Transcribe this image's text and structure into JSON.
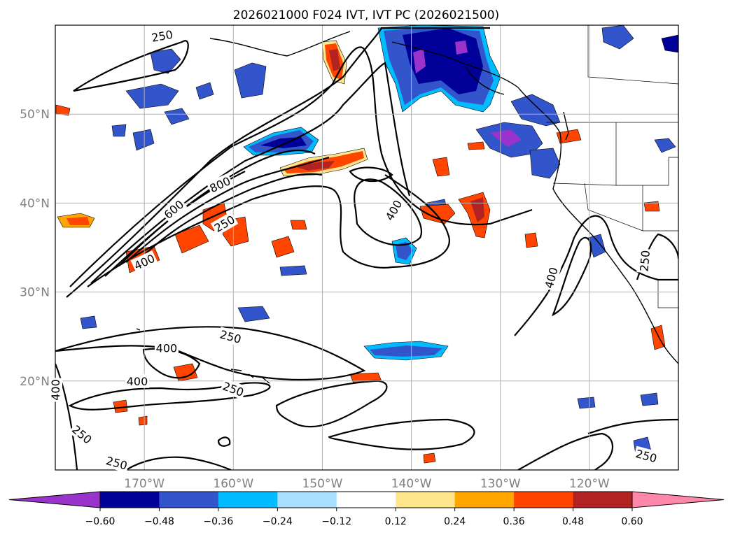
{
  "title": "2026021000 F024 IVT, IVT PC (2026021500)",
  "map": {
    "lon_min": -180,
    "lon_max": -110,
    "lat_min": 10,
    "lat_max": 60,
    "grid": true,
    "lat_labels": [
      {
        "lat": 50,
        "text": "50°N"
      },
      {
        "lat": 40,
        "text": "40°N"
      },
      {
        "lat": 30,
        "text": "30°N"
      },
      {
        "lat": 20,
        "text": "20°N"
      }
    ],
    "lon_labels": [
      {
        "lon": -170,
        "text": "170°W"
      },
      {
        "lon": -160,
        "text": "160°W"
      },
      {
        "lon": -150,
        "text": "150°W"
      },
      {
        "lon": -140,
        "text": "140°W"
      },
      {
        "lon": -130,
        "text": "130°W"
      },
      {
        "lon": -120,
        "text": "120°W"
      }
    ],
    "contour_labels": [
      {
        "text": "250",
        "lon": -168,
        "lat": 58.8,
        "rot": -10
      },
      {
        "text": "800",
        "lon": -161.5,
        "lat": 42.1,
        "rot": -25
      },
      {
        "text": "600",
        "lon": -166.7,
        "lat": 39.3,
        "rot": -40
      },
      {
        "text": "250",
        "lon": -161,
        "lat": 37.7,
        "rot": -30
      },
      {
        "text": "400",
        "lon": -170,
        "lat": 33.4,
        "rot": -25
      },
      {
        "text": "400",
        "lon": -142,
        "lat": 39.2,
        "rot": -60
      },
      {
        "text": "400",
        "lon": -124.3,
        "lat": 31.6,
        "rot": -75
      },
      {
        "text": "250",
        "lon": -113.8,
        "lat": 33.5,
        "rot": -85
      },
      {
        "text": "250",
        "lon": -160.3,
        "lat": 25.0,
        "rot": 15
      },
      {
        "text": "400",
        "lon": -167.5,
        "lat": 23.7,
        "rot": 0
      },
      {
        "text": "400",
        "lon": -170.8,
        "lat": 20.0,
        "rot": 0
      },
      {
        "text": "250",
        "lon": -160,
        "lat": 19.1,
        "rot": 20
      },
      {
        "text": "400",
        "lon": -180,
        "lat": 19.0,
        "rot": -90
      },
      {
        "text": "250",
        "lon": -177,
        "lat": 14.0,
        "rot": 40
      },
      {
        "text": "250",
        "lon": -173.1,
        "lat": 10.8,
        "rot": 15
      },
      {
        "text": "250",
        "lon": -113.6,
        "lat": 11.6,
        "rot": 15
      }
    ]
  },
  "colorbar": {
    "ticks": [
      "−0.60",
      "−0.48",
      "−0.36",
      "−0.24",
      "−0.12",
      "0.12",
      "0.24",
      "0.36",
      "0.48",
      "0.60"
    ],
    "colors": [
      "#9933cc",
      "#000099",
      "#3355cc",
      "#00bbff",
      "#aae0ff",
      "#ffffff",
      "#ffe68c",
      "#ffa500",
      "#ff4500",
      "#b22222",
      "#ff88aa"
    ]
  }
}
